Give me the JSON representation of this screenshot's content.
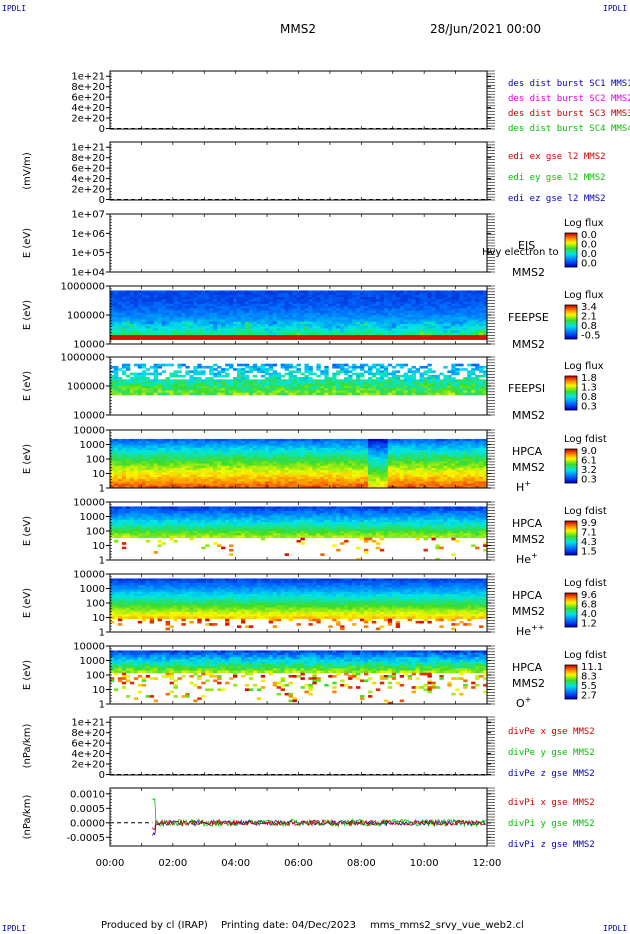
{
  "header": {
    "corner_label": "IPDLI",
    "spacecraft": "MMS2",
    "datetime": "28/Jun/2021 00:00"
  },
  "footer": {
    "producer": "Produced by cl (IRAP)",
    "printing": "Printing date: 04/Dec/2023",
    "filename": "mms_mms2_srvy_vue_web2.cl"
  },
  "colors": {
    "red": "#d00000",
    "magenta": "#e000e0",
    "green": "#00c000",
    "blue": "#0000c0"
  },
  "chart_data": [
    {
      "type": "line",
      "ylabel": "",
      "ylim": [
        -1e+19,
        1.1e+21
      ],
      "yticks": [
        "1e+21",
        "8e+20",
        "6e+20",
        "4e+20",
        "2e+20",
        "0"
      ],
      "dashed_zero": true,
      "legend": [
        {
          "name": "des dist burst SC1 MMS1",
          "color": "#0000c0"
        },
        {
          "name": "des dist burst SC2 MMS2",
          "color": "#e000e0"
        },
        {
          "name": "des dist burst SC3 MMS3",
          "color": "#d00000"
        },
        {
          "name": "des dist burst SC4 MMS4",
          "color": "#00c000"
        }
      ]
    },
    {
      "type": "line",
      "ylabel": "(mV/m)",
      "ylim": [
        -1e+19,
        1.1e+21
      ],
      "yticks": [
        "1e+21",
        "8e+20",
        "6e+20",
        "4e+20",
        "2e+20",
        "0"
      ],
      "dashed_zero": true,
      "legend": [
        {
          "name": "edi ex gse l2 MMS2",
          "color": "#d00000"
        },
        {
          "name": "edi ey gse l2 MMS2",
          "color": "#00c000"
        },
        {
          "name": "edi ez gse l2 MMS2",
          "color": "#0000c0"
        }
      ]
    },
    {
      "type": "heatmap",
      "ylabel": "E (eV)",
      "yscale": "log",
      "yticks": [
        "1e+07",
        "1e+06",
        "1e+05",
        "1e+04"
      ],
      "instrument": "EIS",
      "spacecraft": "MMS2",
      "overlay_text": "Hvy electron to",
      "colorbar": {
        "title": "Log flux",
        "ticks": [
          "0.0",
          "0.0",
          "0.0",
          "0.0"
        ]
      },
      "empty": true
    },
    {
      "type": "heatmap",
      "ylabel": "E (eV)",
      "yscale": "log",
      "yticks": [
        "1000000",
        "100000",
        "10000"
      ],
      "instrument": "FEEPSE",
      "spacecraft": "MMS2",
      "colorbar": {
        "title": "Log flux",
        "ticks": [
          "3.4",
          "2.1",
          "0.8",
          "-0.5"
        ]
      }
    },
    {
      "type": "heatmap",
      "ylabel": "E (eV)",
      "yscale": "log",
      "yticks": [
        "1000000",
        "100000",
        "10000"
      ],
      "instrument": "FEEPSI",
      "spacecraft": "MMS2",
      "colorbar": {
        "title": "Log flux",
        "ticks": [
          "1.8",
          "1.3",
          "0.8",
          "0.3"
        ]
      }
    },
    {
      "type": "heatmap",
      "ylabel": "E (eV)",
      "yscale": "log",
      "yticks": [
        "10000",
        "1000",
        "100",
        "10",
        "1"
      ],
      "instrument": "HPCA",
      "spacecraft": "MMS2",
      "species": "H",
      "charge": "+",
      "colorbar": {
        "title": "Log fdist",
        "ticks": [
          "9.0",
          "6.1",
          "3.2",
          "0.3"
        ]
      }
    },
    {
      "type": "heatmap",
      "ylabel": "E (eV)",
      "yscale": "log",
      "yticks": [
        "10000",
        "1000",
        "100",
        "10",
        "1"
      ],
      "instrument": "HPCA",
      "spacecraft": "MMS2",
      "species": "He",
      "charge": "+",
      "colorbar": {
        "title": "Log fdist",
        "ticks": [
          "9.9",
          "7.1",
          "4.3",
          "1.5"
        ]
      }
    },
    {
      "type": "heatmap",
      "ylabel": "E (eV)",
      "yscale": "log",
      "yticks": [
        "10000",
        "1000",
        "100",
        "10",
        "1"
      ],
      "instrument": "HPCA",
      "spacecraft": "MMS2",
      "species": "He",
      "charge": "++",
      "colorbar": {
        "title": "Log fdist",
        "ticks": [
          "9.6",
          "6.8",
          "4.0",
          "1.2"
        ]
      }
    },
    {
      "type": "heatmap",
      "ylabel": "E (eV)",
      "yscale": "log",
      "yticks": [
        "10000",
        "1000",
        "100",
        "10",
        "1"
      ],
      "instrument": "HPCA",
      "spacecraft": "MMS2",
      "species": "O",
      "charge": "+",
      "colorbar": {
        "title": "Log fdist",
        "ticks": [
          "11.1",
          "8.3",
          "5.5",
          "2.7"
        ]
      }
    },
    {
      "type": "line",
      "ylabel": "(nPa/km)",
      "ylim": [
        -1e+19,
        1.1e+21
      ],
      "yticks": [
        "1e+21",
        "8e+20",
        "6e+20",
        "4e+20",
        "2e+20",
        "0"
      ],
      "dashed_zero": true,
      "legend": [
        {
          "name": "divPe x gse MMS2",
          "color": "#d00000"
        },
        {
          "name": "divPe y gse MMS2",
          "color": "#00c000"
        },
        {
          "name": "divPe z gse MMS2",
          "color": "#0000c0"
        }
      ]
    },
    {
      "type": "line",
      "ylabel": "(nPa/km)",
      "ylim": [
        -0.0008,
        0.0012
      ],
      "yticks": [
        "0.0010",
        "0.0005",
        "0.0000",
        "-0.0005"
      ],
      "ytick_values": [
        0.001,
        0.0005,
        0.0,
        -0.0005
      ],
      "dashed_zero": true,
      "data_start_hour": 1.35,
      "legend": [
        {
          "name": "divPi x gse MMS2",
          "color": "#d00000"
        },
        {
          "name": "divPi y gse MMS2",
          "color": "#00c000"
        },
        {
          "name": "divPi z gse MMS2",
          "color": "#0000c0"
        }
      ]
    }
  ],
  "xaxis": {
    "ticks": [
      "00:00",
      "02:00",
      "04:00",
      "06:00",
      "08:00",
      "10:00",
      "12:00"
    ],
    "range_hours": [
      0,
      12
    ]
  }
}
